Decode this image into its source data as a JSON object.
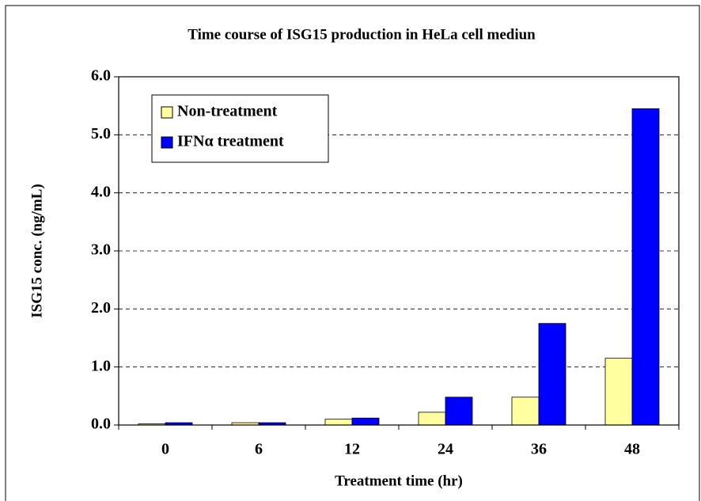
{
  "chart_data": {
    "type": "bar",
    "title": "Time course of ISG15 production in HeLa cell mediun",
    "x_label": "Treatment time (hr)",
    "y_label": "ISG15 conc. (ng/mL)",
    "categories": [
      "0",
      "6",
      "12",
      "24",
      "36",
      "48"
    ],
    "series": [
      {
        "name": "Non-treatment",
        "color": "#ffffa0",
        "values": [
          0.02,
          0.04,
          0.1,
          0.22,
          0.48,
          1.15
        ]
      },
      {
        "name": "IFNα treatment",
        "color": "#0000ff",
        "values": [
          0.04,
          0.04,
          0.12,
          0.48,
          1.75,
          5.45
        ]
      }
    ],
    "ylim": [
      0,
      6
    ],
    "yticks": [
      {
        "value": 0,
        "label": "0.0"
      },
      {
        "value": 1,
        "label": "1.0"
      },
      {
        "value": 2,
        "label": "2.0"
      },
      {
        "value": 3,
        "label": "3.0"
      },
      {
        "value": 4,
        "label": "4.0"
      },
      {
        "value": 5,
        "label": "5.0"
      },
      {
        "value": 6,
        "label": "6.0"
      }
    ],
    "grid": true,
    "legend": "top-left"
  }
}
